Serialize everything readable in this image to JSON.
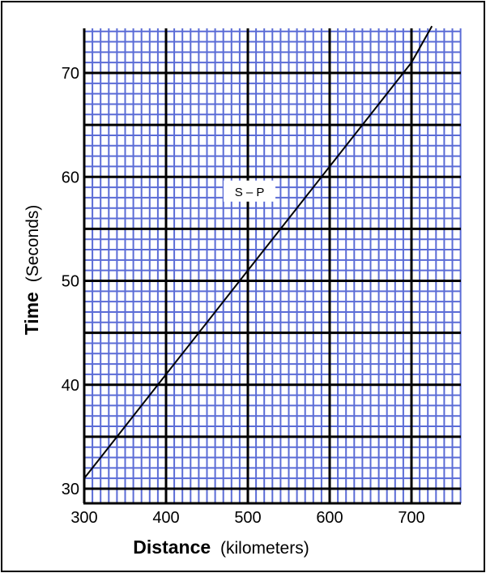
{
  "chart_data": {
    "type": "line",
    "xlabel": {
      "bold": "Distance",
      "normal": "(kilometers)"
    },
    "ylabel": {
      "bold": "Time",
      "normal": "(Seconds)"
    },
    "xlim": [
      300,
      765
    ],
    "ylim": [
      29.5,
      74.5
    ],
    "x_ticks": [
      300,
      400,
      500,
      600,
      700
    ],
    "y_ticks": [
      30,
      40,
      50,
      60,
      70
    ],
    "x_major_lines": [
      400,
      500,
      600,
      700
    ],
    "y_major_lines": [
      30,
      35,
      40,
      45,
      50,
      55,
      60,
      65,
      70
    ],
    "x_minor_step": 10,
    "y_minor_step": 1,
    "grid": true,
    "grid_color": "#5b6cd6",
    "series": [
      {
        "x": [
          300,
          400,
          500,
          600,
          700,
          725
        ],
        "y": [
          31,
          41,
          51,
          61,
          71,
          74.5
        ]
      }
    ],
    "annotations": [
      {
        "text": "S – P",
        "x": 505,
        "y": 58.4
      }
    ]
  }
}
